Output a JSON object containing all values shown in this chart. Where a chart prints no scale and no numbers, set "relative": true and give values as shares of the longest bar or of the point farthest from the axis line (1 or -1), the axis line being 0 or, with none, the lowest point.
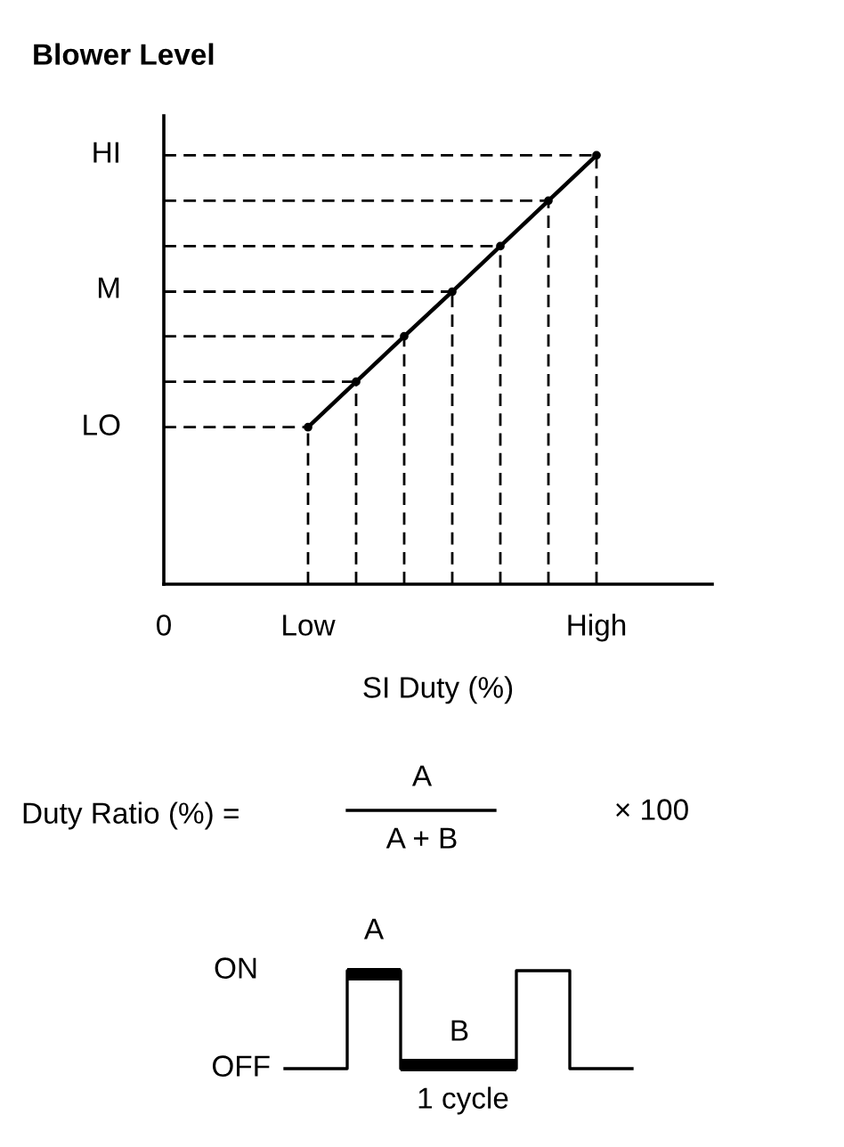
{
  "chart_data": {
    "type": "line",
    "title": "Blower Level",
    "xlabel": "SI Duty (%)",
    "relative": true,
    "categories": [
      "0",
      null,
      null,
      "Low",
      null,
      null,
      null,
      null,
      null,
      "High"
    ],
    "series": [
      {
        "color": "#000000",
        "line_style": "solid",
        "values": [
          null,
          null,
          null,
          0.366,
          0.472,
          0.578,
          0.682,
          0.788,
          0.894,
          1
        ]
      },
      {
        "type": "lollipop",
        "color": "#000000",
        "line_style": "dashed",
        "values": [
          null,
          null,
          null,
          0.366,
          0.472,
          0.578,
          0.682,
          0.788,
          0.894,
          1
        ]
      },
      {
        "color": "#000000",
        "line_style": "dashed",
        "values": [
          0.366,
          0.366,
          0.366,
          0.366,
          null,
          null,
          null,
          null,
          null,
          null
        ]
      },
      {
        "color": "#000000",
        "line_style": "dashed",
        "values": [
          0.472,
          0.472,
          0.472,
          0.472,
          0.472,
          null,
          null,
          null,
          null,
          null
        ]
      },
      {
        "color": "#000000",
        "line_style": "dashed",
        "values": [
          0.578,
          0.578,
          0.578,
          0.578,
          0.578,
          0.578,
          null,
          null,
          null,
          null
        ]
      },
      {
        "color": "#000000",
        "line_style": "dashed",
        "values": [
          0.682,
          0.682,
          0.682,
          0.682,
          0.682,
          0.682,
          0.682,
          null,
          null,
          null
        ]
      },
      {
        "color": "#000000",
        "line_style": "dashed",
        "values": [
          0.788,
          0.788,
          0.788,
          0.788,
          0.788,
          0.788,
          0.788,
          0.788,
          null,
          null
        ]
      },
      {
        "color": "#000000",
        "line_style": "dashed",
        "values": [
          0.894,
          0.894,
          0.894,
          0.894,
          0.894,
          0.894,
          0.894,
          0.894,
          0.894,
          null
        ]
      },
      {
        "color": "#000000",
        "line_style": "dashed",
        "values": [
          1,
          1,
          1,
          1,
          1,
          1,
          1,
          1,
          1,
          1
        ]
      }
    ],
    "annotations": [
      "LO",
      "M",
      "HI",
      "Duty Ratio (%) =",
      "A",
      "A + B",
      "× 100",
      "ON",
      "OFF",
      "A",
      "B",
      "1 cycle"
    ]
  }
}
